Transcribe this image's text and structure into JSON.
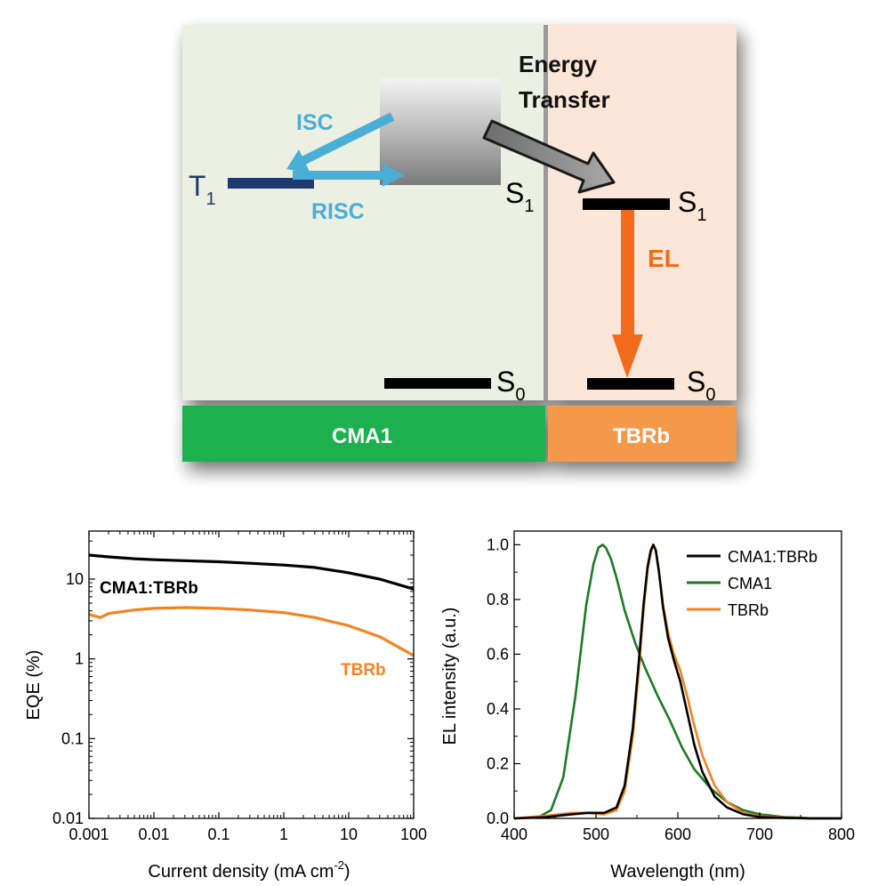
{
  "diagram": {
    "host_label": "CMA1",
    "guest_label": "TBRb",
    "host_color": "#1db04f",
    "guest_color": "#f4994a",
    "host_bg": "#ebf0e2",
    "guest_bg": "#fbe6d8",
    "transfer_label_1": "Energy",
    "transfer_label_2": "Transfer",
    "isc_label": "ISC",
    "risc_label": "RISC",
    "el_label": "EL",
    "t1_main": "T",
    "t1_sub": "1",
    "host_s1_main": "S",
    "host_s1_sub": "1",
    "host_s0_main": "S",
    "host_s0_sub": "0",
    "guest_s1_main": "S",
    "guest_s1_sub": "1",
    "guest_s0_main": "S",
    "guest_s0_sub": "0",
    "isc_color": "#4aaed6",
    "el_arrow_color": "#f26a1b",
    "t1_color": "#1f3a6e"
  },
  "chart_data": [
    {
      "type": "line",
      "x_scale": "log",
      "y_scale": "log",
      "xlabel_main": "Current density (mA cm",
      "xlabel_sup": "-2",
      "xlabel_end": ")",
      "ylabel": "EQE  (%)",
      "xlim": [
        0.001,
        100
      ],
      "ylim": [
        0.01,
        40
      ],
      "x_ticks": [
        "0.001",
        "0.01",
        "0.1",
        "1",
        "10",
        "100"
      ],
      "y_ticks": [
        "0.01",
        "0.1",
        "1",
        "10"
      ],
      "series": [
        {
          "name": "CMA1:TBRb",
          "color": "#000000",
          "label_color": "#000000",
          "x": [
            0.001,
            0.002,
            0.005,
            0.01,
            0.03,
            0.1,
            0.3,
            1,
            3,
            10,
            30,
            100
          ],
          "y": [
            20,
            19,
            18,
            17.5,
            17,
            16.5,
            15.8,
            15,
            14,
            12,
            10,
            7.5
          ]
        },
        {
          "name": "TBRb",
          "color": "#f58220",
          "label_color": "#f58220",
          "x": [
            0.001,
            0.0015,
            0.002,
            0.005,
            0.01,
            0.03,
            0.1,
            0.3,
            1,
            3,
            10,
            30,
            100
          ],
          "y": [
            3.6,
            3.3,
            3.7,
            4.1,
            4.3,
            4.4,
            4.3,
            4.1,
            3.8,
            3.3,
            2.6,
            1.9,
            1.1
          ]
        }
      ]
    },
    {
      "type": "line",
      "xlabel": "Wavelength (nm)",
      "ylabel": "EL intensity (a.u.)",
      "xlim": [
        400,
        800
      ],
      "ylim": [
        0,
        1.05
      ],
      "x_ticks": [
        "400",
        "500",
        "600",
        "700",
        "800"
      ],
      "y_ticks": [
        "0.0",
        "0.2",
        "0.4",
        "0.6",
        "0.8",
        "1.0"
      ],
      "legend_position": "top-right",
      "series": [
        {
          "name": "CMA1:TBRb",
          "color": "#000000",
          "x": [
            400,
            440,
            470,
            490,
            510,
            525,
            535,
            545,
            552,
            558,
            563,
            567,
            570,
            573,
            577,
            582,
            588,
            595,
            603,
            612,
            620,
            630,
            645,
            660,
            680,
            700,
            730,
            760,
            800
          ],
          "y": [
            0,
            0.005,
            0.015,
            0.02,
            0.02,
            0.04,
            0.12,
            0.33,
            0.56,
            0.78,
            0.92,
            0.98,
            1.0,
            0.98,
            0.9,
            0.77,
            0.66,
            0.58,
            0.5,
            0.38,
            0.27,
            0.17,
            0.08,
            0.04,
            0.015,
            0.005,
            0.002,
            0,
            0
          ]
        },
        {
          "name": "CMA1",
          "color": "#1a7a25",
          "x": [
            400,
            430,
            445,
            460,
            475,
            488,
            497,
            503,
            508,
            512,
            518,
            525,
            535,
            548,
            560,
            575,
            590,
            605,
            620,
            640,
            660,
            680,
            700,
            730,
            760,
            800
          ],
          "y": [
            0,
            0.005,
            0.03,
            0.15,
            0.45,
            0.78,
            0.93,
            0.99,
            1.0,
            0.99,
            0.95,
            0.88,
            0.76,
            0.64,
            0.55,
            0.45,
            0.36,
            0.26,
            0.18,
            0.11,
            0.06,
            0.03,
            0.015,
            0.005,
            0.001,
            0
          ]
        },
        {
          "name": "TBRb",
          "color": "#f58220",
          "x": [
            400,
            440,
            470,
            490,
            510,
            525,
            535,
            545,
            552,
            558,
            563,
            567,
            570,
            573,
            577,
            582,
            588,
            595,
            603,
            612,
            620,
            630,
            645,
            660,
            680,
            700,
            730,
            760,
            800
          ],
          "y": [
            0,
            0.01,
            0.02,
            0.02,
            0.015,
            0.03,
            0.1,
            0.3,
            0.53,
            0.76,
            0.91,
            0.97,
            1.0,
            0.98,
            0.9,
            0.78,
            0.68,
            0.6,
            0.54,
            0.44,
            0.34,
            0.23,
            0.12,
            0.06,
            0.02,
            0.008,
            0.003,
            0,
            0
          ]
        }
      ]
    }
  ]
}
